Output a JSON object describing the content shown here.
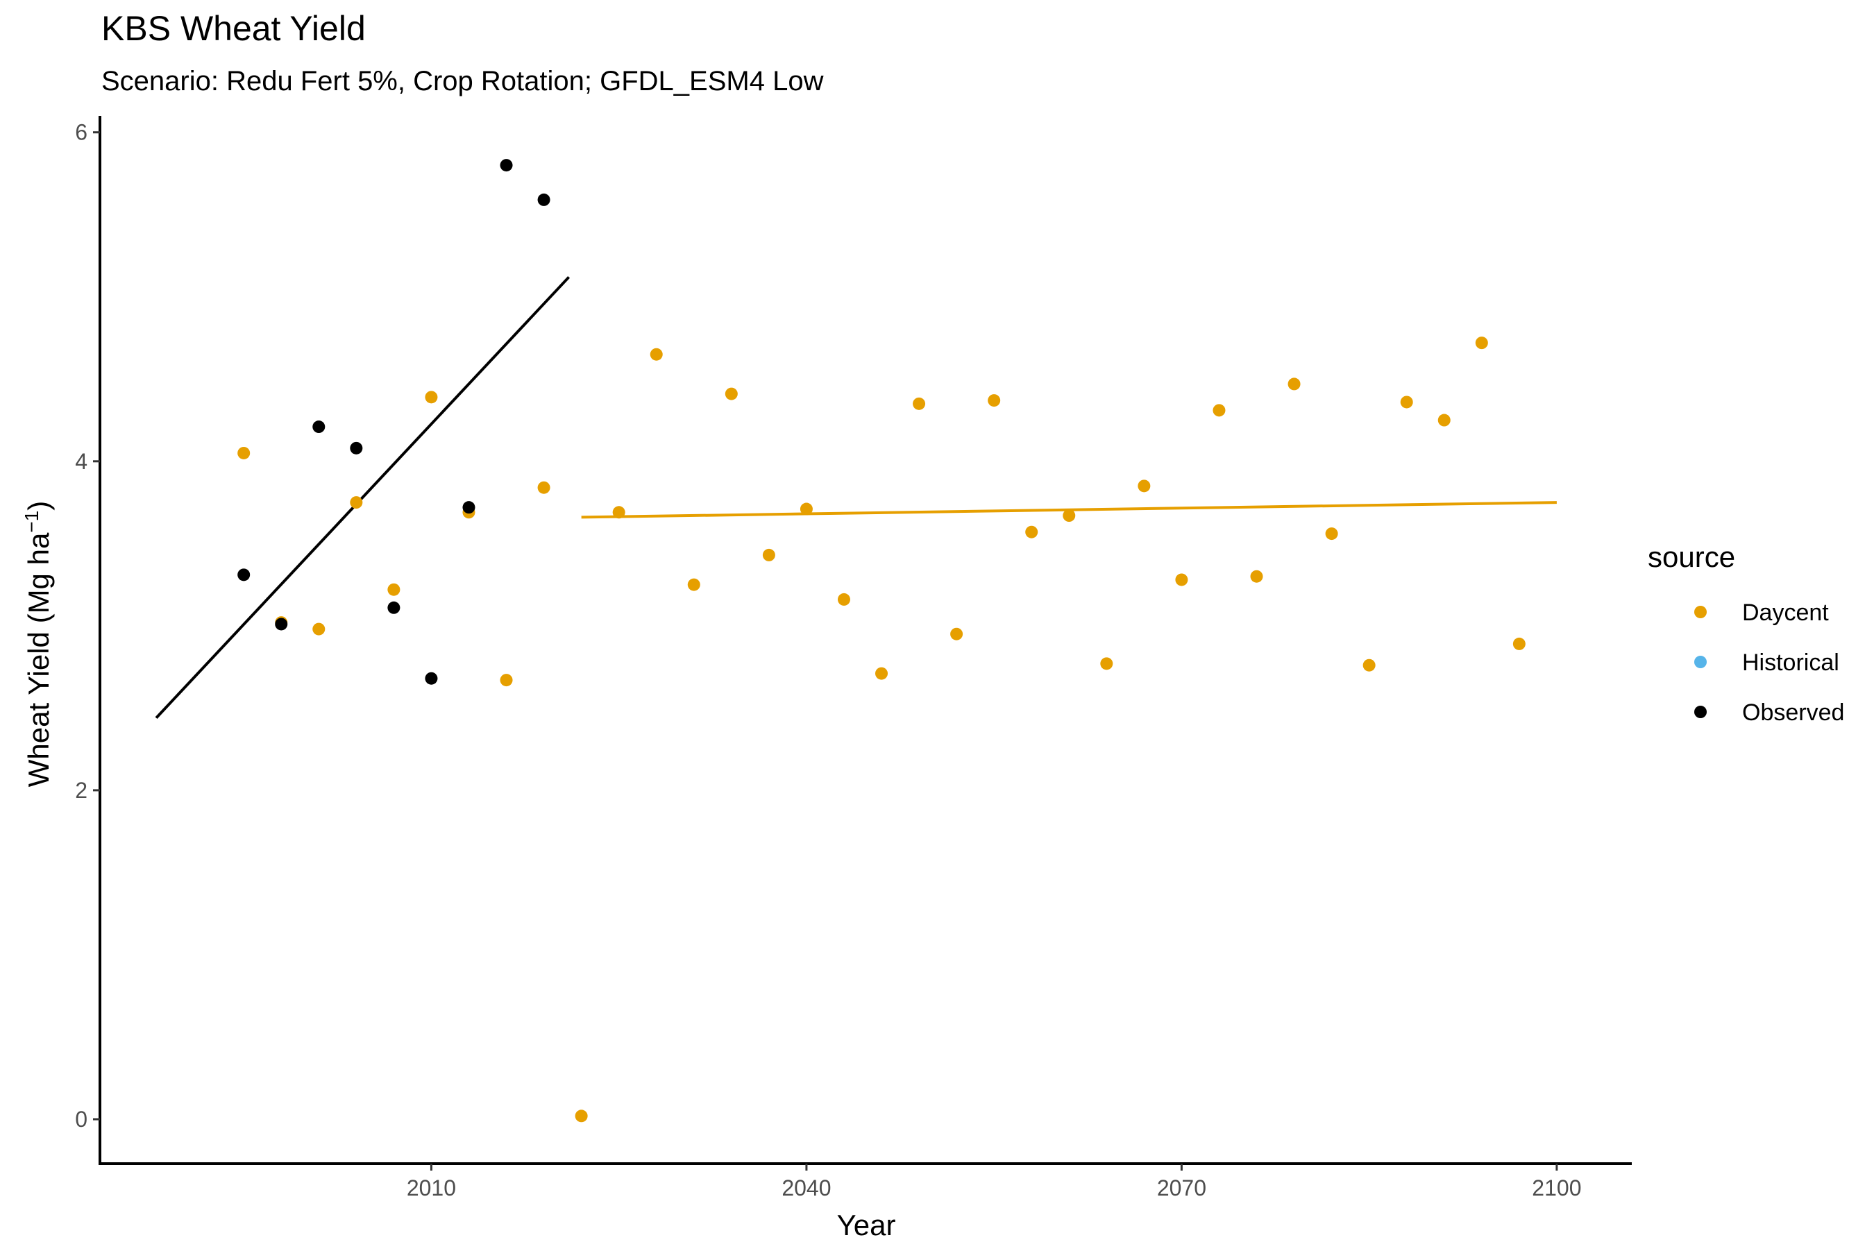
{
  "chart_data": {
    "type": "scatter",
    "title": "KBS Wheat Yield",
    "subtitle": "Scenario: Redu Fert 5%, Crop Rotation; GFDL_ESM4 Low",
    "xlabel": "Year",
    "ylabel": {
      "main": "Wheat Yield (Mg ha",
      "superscript": "−1",
      "close": ")"
    },
    "xlim": [
      1983.5,
      2106
    ],
    "ylim": [
      -0.27,
      6.1
    ],
    "x_ticks": [
      2010,
      2040,
      2070,
      2100
    ],
    "y_ticks": [
      0,
      2,
      4,
      6
    ],
    "legend": {
      "title": "source",
      "position": "right",
      "entries": [
        "Daycent",
        "Historical",
        "Observed"
      ]
    },
    "colors": {
      "Daycent": "#E69F00",
      "Historical": "#56B4E9",
      "Observed": "#000000"
    },
    "series": [
      {
        "name": "Daycent",
        "points": [
          [
            1995,
            4.05
          ],
          [
            1998,
            3.02
          ],
          [
            2001,
            2.98
          ],
          [
            2004,
            3.75
          ],
          [
            2007,
            3.22
          ],
          [
            2010,
            4.39
          ],
          [
            2013,
            3.69
          ],
          [
            2016,
            2.67
          ],
          [
            2019,
            3.84
          ],
          [
            2022,
            0.02
          ],
          [
            2025,
            3.69
          ],
          [
            2028,
            4.65
          ],
          [
            2031,
            3.25
          ],
          [
            2034,
            4.41
          ],
          [
            2037,
            3.43
          ],
          [
            2040,
            3.71
          ],
          [
            2043,
            3.16
          ],
          [
            2046,
            2.71
          ],
          [
            2049,
            4.35
          ],
          [
            2052,
            2.95
          ],
          [
            2055,
            4.37
          ],
          [
            2058,
            3.57
          ],
          [
            2061,
            3.67
          ],
          [
            2064,
            2.77
          ],
          [
            2067,
            3.85
          ],
          [
            2070,
            3.28
          ],
          [
            2073,
            4.31
          ],
          [
            2076,
            3.3
          ],
          [
            2079,
            4.47
          ],
          [
            2082,
            3.56
          ],
          [
            2085,
            2.76
          ],
          [
            2088,
            4.36
          ],
          [
            2091,
            4.25
          ],
          [
            2094,
            4.72
          ],
          [
            2097,
            2.89
          ]
        ]
      },
      {
        "name": "Historical",
        "points": []
      },
      {
        "name": "Observed",
        "points": [
          [
            1995,
            3.31
          ],
          [
            1998,
            3.01
          ],
          [
            2001,
            4.21
          ],
          [
            2004,
            4.08
          ],
          [
            2007,
            3.11
          ],
          [
            2010,
            2.68
          ],
          [
            2013,
            3.72
          ],
          [
            2016,
            5.8
          ],
          [
            2019,
            5.59
          ]
        ]
      }
    ],
    "trend_lines": [
      {
        "series": "Observed",
        "from": [
          1988,
          2.44
        ],
        "to": [
          2021,
          5.12
        ]
      },
      {
        "series": "Daycent",
        "from": [
          2022,
          3.66
        ],
        "to": [
          2100,
          3.75
        ]
      }
    ]
  }
}
